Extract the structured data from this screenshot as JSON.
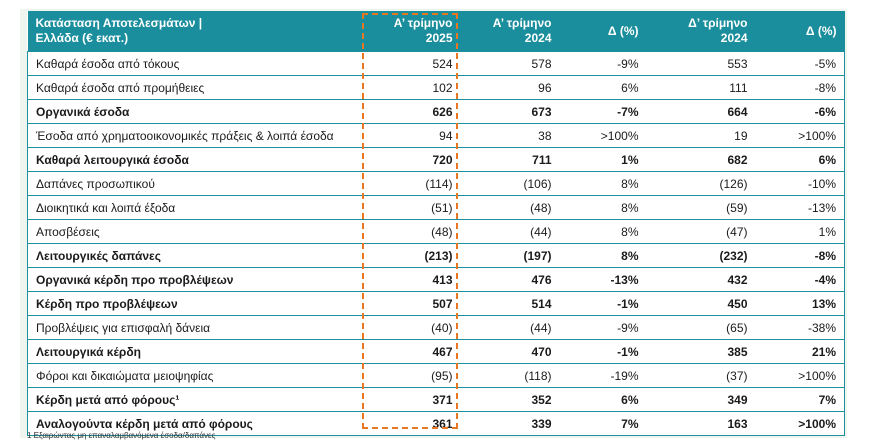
{
  "table": {
    "headers": {
      "label_line1": "Κατάσταση Αποτελεσμάτων |",
      "label_line2": "Ελλάδα (€ εκατ.)",
      "q1_2025_line1": "Α’ τρίμηνο",
      "q1_2025_line2": "2025",
      "q1_2024_line1": "Α’ τρίμηνο",
      "q1_2024_line2": "2024",
      "delta1": "Δ (%)",
      "q4_2024_line1": "Δ’ τρίμηνο",
      "q4_2024_line2": "2024",
      "delta2": "Δ (%)"
    },
    "rows": [
      {
        "label": "Καθαρά έσοδα από τόκους",
        "q1_2025": "524",
        "q1_2024": "578",
        "d1": "-9%",
        "q4_2024": "553",
        "d2": "-5%"
      },
      {
        "label": "Καθαρά έσοδα από προμήθειες",
        "q1_2025": "102",
        "q1_2024": "96",
        "d1": "6%",
        "q4_2024": "111",
        "d2": "-8%"
      },
      {
        "label": "Οργανικά έσοδα",
        "q1_2025": "626",
        "q1_2024": "673",
        "d1": "-7%",
        "q4_2024": "664",
        "d2": "-6%"
      },
      {
        "label": "Έσοδα από χρηματοοικονομικές πράξεις & λοιπά έσοδα",
        "q1_2025": "94",
        "q1_2024": "38",
        "d1": ">100%",
        "q4_2024": "19",
        "d2": ">100%"
      },
      {
        "label": "Καθαρά λειτουργικά έσοδα",
        "q1_2025": "720",
        "q1_2024": "711",
        "d1": "1%",
        "q4_2024": "682",
        "d2": "6%"
      },
      {
        "label": "Δαπάνες προσωπικού",
        "q1_2025": "(114)",
        "q1_2024": "(106)",
        "d1": "8%",
        "q4_2024": "(126)",
        "d2": "-10%"
      },
      {
        "label": "Διοικητικά και λοιπά έξοδα",
        "q1_2025": "(51)",
        "q1_2024": "(48)",
        "d1": "8%",
        "q4_2024": "(59)",
        "d2": "-13%"
      },
      {
        "label": "Αποσβέσεις",
        "q1_2025": "(48)",
        "q1_2024": "(44)",
        "d1": "8%",
        "q4_2024": "(47)",
        "d2": "1%"
      },
      {
        "label": "Λειτουργικές δαπάνες",
        "q1_2025": "(213)",
        "q1_2024": "(197)",
        "d1": "8%",
        "q4_2024": "(232)",
        "d2": "-8%"
      },
      {
        "label": "Οργανικά κέρδη προ προβλέψεων",
        "q1_2025": "413",
        "q1_2024": "476",
        "d1": "-13%",
        "q4_2024": "432",
        "d2": "-4%"
      },
      {
        "label": "Κέρδη προ προβλέψεων",
        "q1_2025": "507",
        "q1_2024": "514",
        "d1": "-1%",
        "q4_2024": "450",
        "d2": "13%"
      },
      {
        "label": "Προβλέψεις για επισφαλή δάνεια",
        "q1_2025": "(40)",
        "q1_2024": "(44)",
        "d1": "-9%",
        "q4_2024": "(65)",
        "d2": "-38%"
      },
      {
        "label": "Λειτουργικά κέρδη",
        "q1_2025": "467",
        "q1_2024": "470",
        "d1": "-1%",
        "q4_2024": "385",
        "d2": "21%"
      },
      {
        "label": "Φόροι και δικαιώματα μειοψηφίας",
        "q1_2025": "(95)",
        "q1_2024": "(118)",
        "d1": "-19%",
        "q4_2024": "(37)",
        "d2": ">100%"
      },
      {
        "label": "Κέρδη μετά από φόρους¹",
        "q1_2025": "371",
        "q1_2024": "352",
        "d1": "6%",
        "q4_2024": "349",
        "d2": "7%"
      },
      {
        "label": "Αναλογούντα κέρδη μετά από φόρους",
        "q1_2025": "361",
        "q1_2024": "339",
        "d1": "7%",
        "q4_2024": "163",
        "d2": ">100%"
      }
    ]
  },
  "footnote": "1 Εξαιρώντας μη επαναλαμβανόμενα έσοδα/δαπάνες",
  "colors": {
    "header_bg": "#1a8e9c",
    "row_border": "#1e8f9e",
    "highlight_dash": "#e87722",
    "frame_bg": "#eef5ef"
  }
}
